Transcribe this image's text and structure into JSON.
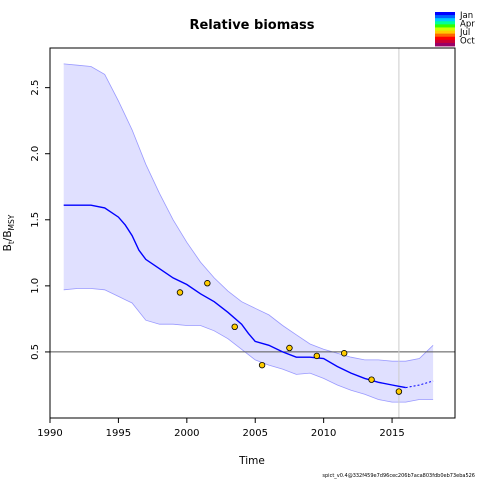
{
  "chart_data": {
    "type": "line",
    "title": "Relative biomass",
    "xlabel": "Time",
    "ylabel": {
      "main": "B",
      "sub1": "t",
      "slash": "/B",
      "sub2": "MSY"
    },
    "xlim": [
      1990,
      2019.6
    ],
    "ylim": [
      0,
      2.8
    ],
    "xticks": [
      1990,
      1995,
      2000,
      2005,
      2010,
      2015
    ],
    "yticks": [
      0.5,
      1.0,
      1.5,
      2.0,
      2.5
    ],
    "grid": false,
    "reference_line_y": 0.5,
    "vertical_line_x": 2015.5,
    "estimate": {
      "x": [
        1991,
        1992,
        1993,
        1994,
        1995,
        1995.5,
        1996,
        1996.5,
        1997,
        1998,
        1999,
        2000,
        2001,
        2002,
        2003,
        2004,
        2004.5,
        2005,
        2006,
        2007,
        2008,
        2009,
        2010,
        2011,
        2012,
        2013,
        2014,
        2015,
        2015.5,
        2016
      ],
      "y": [
        1.61,
        1.61,
        1.61,
        1.59,
        1.52,
        1.46,
        1.38,
        1.27,
        1.2,
        1.13,
        1.06,
        1.01,
        0.94,
        0.88,
        0.8,
        0.71,
        0.64,
        0.58,
        0.55,
        0.5,
        0.46,
        0.46,
        0.45,
        0.39,
        0.34,
        0.3,
        0.27,
        0.25,
        0.24,
        0.23
      ]
    },
    "forecast": {
      "x": [
        2016,
        2017,
        2018
      ],
      "y": [
        0.23,
        0.25,
        0.28
      ]
    },
    "ci_upper": {
      "x": [
        1991,
        1992,
        1993,
        1994,
        1995,
        1996,
        1997,
        1998,
        1999,
        2000,
        2001,
        2002,
        2003,
        2004,
        2005,
        2006,
        2007,
        2008,
        2009,
        2010,
        2011,
        2012,
        2013,
        2014,
        2015,
        2016,
        2017,
        2018
      ],
      "y": [
        2.68,
        2.67,
        2.66,
        2.6,
        2.4,
        2.18,
        1.92,
        1.7,
        1.5,
        1.33,
        1.18,
        1.06,
        0.96,
        0.88,
        0.83,
        0.78,
        0.7,
        0.63,
        0.56,
        0.52,
        0.49,
        0.46,
        0.44,
        0.44,
        0.43,
        0.43,
        0.45,
        0.55
      ]
    },
    "ci_lower": {
      "x": [
        1991,
        1992,
        1993,
        1994,
        1995,
        1996,
        1997,
        1998,
        1999,
        2000,
        2001,
        2002,
        2003,
        2004,
        2005,
        2006,
        2007,
        2008,
        2009,
        2010,
        2011,
        2012,
        2013,
        2014,
        2015,
        2016,
        2017,
        2018
      ],
      "y": [
        0.97,
        0.98,
        0.98,
        0.97,
        0.92,
        0.87,
        0.74,
        0.71,
        0.71,
        0.7,
        0.7,
        0.66,
        0.6,
        0.52,
        0.44,
        0.4,
        0.37,
        0.33,
        0.34,
        0.3,
        0.25,
        0.21,
        0.18,
        0.14,
        0.12,
        0.12,
        0.14,
        0.14
      ]
    },
    "observations": {
      "x": [
        1999.5,
        2001.5,
        2003.5,
        2005.5,
        2007.5,
        2009.5,
        2011.5,
        2013.5,
        2015.5
      ],
      "y": [
        0.95,
        1.02,
        0.69,
        0.4,
        0.53,
        0.47,
        0.49,
        0.29,
        0.2
      ]
    },
    "legend": {
      "position": "top-right",
      "labels": [
        "Jan",
        "Apr",
        "Jul",
        "Oct"
      ],
      "colors": [
        "#0000ff",
        "#0066ff",
        "#00ccff",
        "#00ff99",
        "#33ff00",
        "#ccff00",
        "#ffcc00",
        "#ff6600",
        "#ff0000",
        "#cc0033",
        "#990066"
      ]
    },
    "colors": {
      "estimate": "#0000ff",
      "ci_fill": "#e0e0ff",
      "ci_line": "#9999ff",
      "point_fill": "#ffcc00",
      "reference": "#555555",
      "vline": "#cccccc"
    }
  },
  "footer": "spict_v0.4@332f459e7d96cec206b7aca803fdb0eb73eba526"
}
